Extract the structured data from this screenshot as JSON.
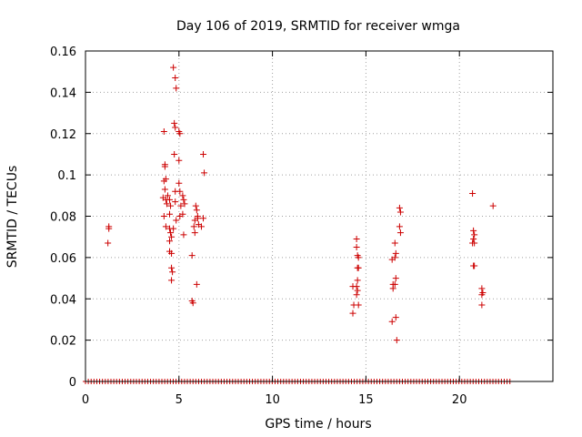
{
  "chart_data": {
    "type": "scatter",
    "title": "Day 106 of 2019, SRMTID for receiver wmga",
    "xlabel": "GPS time / hours",
    "ylabel": "SRMTID / TECUs",
    "xlim": [
      0,
      25
    ],
    "ylim": [
      0,
      0.16
    ],
    "xticks": [
      0,
      5,
      10,
      15,
      20
    ],
    "xtick_labels": [
      "0",
      "5",
      "10",
      "15",
      "20"
    ],
    "yticks": [
      0,
      0.02,
      0.04,
      0.06,
      0.08,
      0.1,
      0.12,
      0.14,
      0.16
    ],
    "ytick_labels": [
      "0",
      "0.02",
      "0.04",
      "0.06",
      "0.08",
      "0.1",
      "0.12",
      "0.14",
      "0.16"
    ],
    "grid": true,
    "marker": "+",
    "color": "#cc0000",
    "zero_baseline_range": [
      0,
      22.7
    ],
    "points": [
      [
        1.2,
        0.067
      ],
      [
        1.25,
        0.074
      ],
      [
        1.25,
        0.075
      ],
      [
        4.2,
        0.121
      ],
      [
        4.25,
        0.105
      ],
      [
        4.25,
        0.104
      ],
      [
        4.3,
        0.098
      ],
      [
        4.2,
        0.097
      ],
      [
        4.25,
        0.093
      ],
      [
        4.15,
        0.089
      ],
      [
        4.3,
        0.088
      ],
      [
        4.4,
        0.09
      ],
      [
        4.35,
        0.086
      ],
      [
        4.2,
        0.08
      ],
      [
        4.3,
        0.075
      ],
      [
        4.5,
        0.088
      ],
      [
        4.55,
        0.085
      ],
      [
        4.5,
        0.081
      ],
      [
        4.5,
        0.074
      ],
      [
        4.55,
        0.072
      ],
      [
        4.6,
        0.07
      ],
      [
        4.5,
        0.068
      ],
      [
        4.5,
        0.063
      ],
      [
        4.6,
        0.062
      ],
      [
        4.6,
        0.055
      ],
      [
        4.65,
        0.053
      ],
      [
        4.6,
        0.049
      ],
      [
        4.7,
        0.152
      ],
      [
        4.8,
        0.147
      ],
      [
        4.85,
        0.142
      ],
      [
        4.75,
        0.125
      ],
      [
        4.8,
        0.123
      ],
      [
        4.75,
        0.11
      ],
      [
        4.8,
        0.092
      ],
      [
        4.8,
        0.087
      ],
      [
        4.85,
        0.078
      ],
      [
        4.7,
        0.074
      ],
      [
        5.0,
        0.121
      ],
      [
        5.05,
        0.12
      ],
      [
        5.0,
        0.107
      ],
      [
        5.0,
        0.096
      ],
      [
        5.05,
        0.092
      ],
      [
        5.1,
        0.085
      ],
      [
        5.05,
        0.08
      ],
      [
        5.2,
        0.09
      ],
      [
        5.25,
        0.088
      ],
      [
        5.3,
        0.086
      ],
      [
        5.2,
        0.081
      ],
      [
        5.25,
        0.071
      ],
      [
        5.7,
        0.061
      ],
      [
        5.7,
        0.039
      ],
      [
        5.75,
        0.038
      ],
      [
        5.8,
        0.075
      ],
      [
        5.85,
        0.072
      ],
      [
        5.85,
        0.078
      ],
      [
        5.9,
        0.085
      ],
      [
        5.95,
        0.083
      ],
      [
        6.0,
        0.08
      ],
      [
        6.0,
        0.079
      ],
      [
        6.05,
        0.076
      ],
      [
        5.95,
        0.047
      ],
      [
        6.3,
        0.11
      ],
      [
        6.35,
        0.101
      ],
      [
        6.3,
        0.079
      ],
      [
        6.2,
        0.075
      ],
      [
        14.3,
        0.046
      ],
      [
        14.35,
        0.037
      ],
      [
        14.3,
        0.033
      ],
      [
        14.5,
        0.069
      ],
      [
        14.5,
        0.065
      ],
      [
        14.55,
        0.061
      ],
      [
        14.6,
        0.06
      ],
      [
        14.55,
        0.055
      ],
      [
        14.6,
        0.055
      ],
      [
        14.55,
        0.049
      ],
      [
        14.5,
        0.046
      ],
      [
        14.55,
        0.044
      ],
      [
        14.5,
        0.042
      ],
      [
        14.6,
        0.037
      ],
      [
        16.4,
        0.059
      ],
      [
        16.45,
        0.047
      ],
      [
        16.45,
        0.045
      ],
      [
        16.4,
        0.029
      ],
      [
        16.55,
        0.067
      ],
      [
        16.6,
        0.062
      ],
      [
        16.55,
        0.06
      ],
      [
        16.6,
        0.05
      ],
      [
        16.55,
        0.047
      ],
      [
        16.6,
        0.031
      ],
      [
        16.65,
        0.02
      ],
      [
        16.8,
        0.084
      ],
      [
        16.85,
        0.082
      ],
      [
        16.8,
        0.075
      ],
      [
        16.85,
        0.072
      ],
      [
        20.7,
        0.091
      ],
      [
        20.75,
        0.073
      ],
      [
        20.8,
        0.071
      ],
      [
        20.75,
        0.069
      ],
      [
        20.7,
        0.067
      ],
      [
        20.8,
        0.067
      ],
      [
        20.75,
        0.056
      ],
      [
        20.8,
        0.056
      ],
      [
        21.2,
        0.045
      ],
      [
        21.25,
        0.043
      ],
      [
        21.2,
        0.042
      ],
      [
        21.2,
        0.037
      ],
      [
        21.8,
        0.085
      ]
    ]
  }
}
